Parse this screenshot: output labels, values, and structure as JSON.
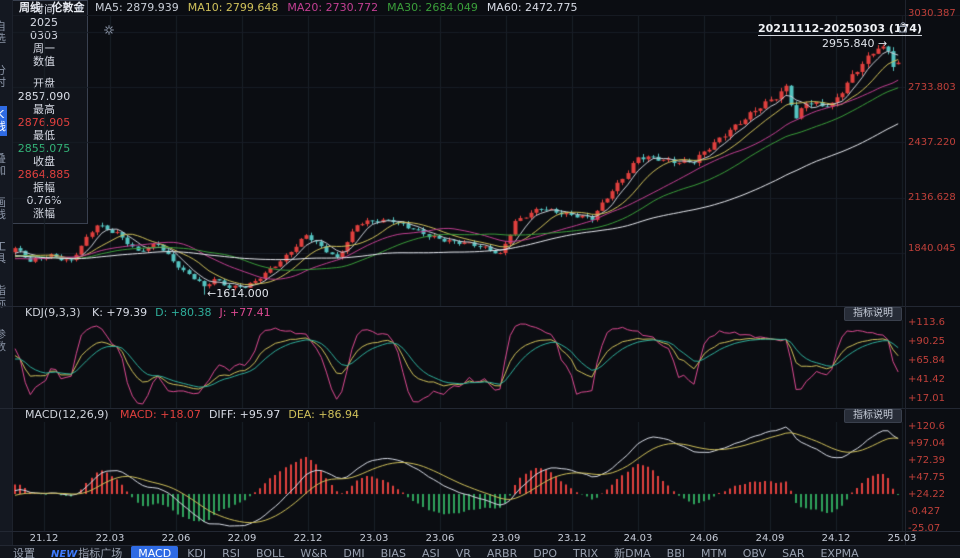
{
  "colors": {
    "background": "#0b0d12",
    "up": "#e0403e",
    "down": "#54c3c0",
    "axis_text": "#c0403a",
    "grid": "#1a2029",
    "text": "#d8dce6"
  },
  "topbar": {
    "period": "周线",
    "symbol": "伦敦金",
    "mas": [
      {
        "label": "MA5:",
        "value": "2879.939",
        "color": "#c8cdd6"
      },
      {
        "label": "MA10:",
        "value": "2799.648",
        "color": "#cfc05a"
      },
      {
        "label": "MA20:",
        "value": "2730.772",
        "color": "#c23f92"
      },
      {
        "label": "MA30:",
        "value": "2684.049",
        "color": "#3a9e3a"
      },
      {
        "label": "MA60:",
        "value": "2472.775",
        "color": "#d8dce6"
      }
    ]
  },
  "left_sidebar": {
    "items": [
      "自选",
      "分时",
      "K线",
      "叠加",
      "画线",
      "工具",
      "指标",
      "参数"
    ],
    "active_index": 2
  },
  "info_panel": {
    "title": "时间",
    "close_icon": "✕",
    "date_lines": [
      "2025",
      "0303",
      "周一"
    ],
    "section": "数值",
    "fields": [
      {
        "label": "开盘",
        "value": "2857.090",
        "color": "#d8dce6"
      },
      {
        "label": "最高",
        "value": "2876.905",
        "color": "#e0403e"
      },
      {
        "label": "最低",
        "value": "2855.075",
        "color": "#33b176"
      },
      {
        "label": "收盘",
        "value": "2864.885",
        "color": "#e0403e"
      },
      {
        "label": "振幅",
        "value": "0.76%",
        "color": "#d8dce6"
      },
      {
        "label": "涨幅",
        "value": "",
        "color": "#d8dce6"
      }
    ]
  },
  "main_chart": {
    "range_label": "20211112-20250303 (174)",
    "high_label": "2955.840",
    "high_arrow": "→",
    "low_label": "←1614.000"
  },
  "kdj": {
    "title": "KDJ(9,3,3)",
    "button": "指标说明",
    "items": [
      {
        "label": "K:",
        "value": "+79.39",
        "color": "#d8dce6"
      },
      {
        "label": "D:",
        "value": "+80.38",
        "color": "#2fae9b"
      },
      {
        "label": "J:",
        "value": "+77.41",
        "color": "#dd4a92"
      }
    ]
  },
  "macd": {
    "title": "MACD(12,26,9)",
    "button": "指标说明",
    "items": [
      {
        "label": "MACD:",
        "value": "+18.07",
        "color": "#e0403e"
      },
      {
        "label": "DIFF:",
        "value": "+95.97",
        "color": "#d8dce6"
      },
      {
        "label": "DEA:",
        "value": "+86.94",
        "color": "#cfc05a"
      }
    ]
  },
  "bottom_bar": {
    "items": [
      "设置",
      "NEW指标广场",
      "MACD",
      "KDJ",
      "RSI",
      "BOLL",
      "W&R",
      "DMI",
      "BIAS",
      "ASI",
      "VR",
      "ARBR",
      "DPO",
      "TRIX",
      "新DMA",
      "BBI",
      "MTM",
      "OBV",
      "SAR",
      "EXPMA"
    ],
    "active": "MACD"
  },
  "chart_data": [
    {
      "name": "main",
      "type": "candlestick",
      "title": "周线 伦敦金",
      "bars": 174,
      "range_label": "20211112-20250303 (174)",
      "x_ticks": [
        "21.12",
        "22.03",
        "22.06",
        "22.09",
        "22.12",
        "23.03",
        "23.06",
        "23.09",
        "23.12",
        "24.03",
        "24.06",
        "24.09",
        "24.12",
        "25.03"
      ],
      "y_ticks": [
        "3030.387",
        "2733.803",
        "2437.220",
        "2136.628",
        "1840.045"
      ],
      "ylim": [
        1564,
        3154
      ],
      "pre_keyframes": [
        [
          -60,
          1945
        ],
        [
          -47,
          1840
        ],
        [
          -34,
          1725
        ],
        [
          -24,
          1890
        ],
        [
          -14,
          1780
        ],
        [
          -6,
          1795
        ]
      ],
      "keyframes": [
        [
          0,
          1865
        ],
        [
          3,
          1790
        ],
        [
          7,
          1830
        ],
        [
          11,
          1795
        ],
        [
          16,
          1990
        ],
        [
          20,
          1950
        ],
        [
          24,
          1840
        ],
        [
          28,
          1890
        ],
        [
          33,
          1740
        ],
        [
          36,
          1680
        ],
        [
          37,
          1650
        ],
        [
          39,
          1700
        ],
        [
          42,
          1660
        ],
        [
          45,
          1655
        ],
        [
          47,
          1680
        ],
        [
          52,
          1800
        ],
        [
          57,
          1930
        ],
        [
          60,
          1870
        ],
        [
          63,
          1815
        ],
        [
          67,
          1990
        ],
        [
          71,
          2010
        ],
        [
          74,
          2020
        ],
        [
          81,
          1925
        ],
        [
          88,
          1895
        ],
        [
          95,
          1835
        ],
        [
          98,
          2010
        ],
        [
          103,
          2075
        ],
        [
          107,
          2060
        ],
        [
          113,
          2020
        ],
        [
          117,
          2180
        ],
        [
          122,
          2350
        ],
        [
          128,
          2340
        ],
        [
          133,
          2330
        ],
        [
          136,
          2400
        ],
        [
          140,
          2510
        ],
        [
          146,
          2620
        ],
        [
          149,
          2680
        ],
        [
          151,
          2740
        ],
        [
          153,
          2570
        ],
        [
          155,
          2650
        ],
        [
          158,
          2625
        ],
        [
          160,
          2640
        ],
        [
          164,
          2800
        ],
        [
          169,
          2940
        ],
        [
          171,
          2930
        ],
        [
          172,
          2858
        ],
        [
          173,
          2864.885
        ]
      ],
      "special": {
        "low_index": 37,
        "low": 1614.0,
        "high_index": 171,
        "high": 2955.84,
        "last_bar": {
          "open": 2857.09,
          "high": 2876.905,
          "low": 2855.075,
          "close": 2864.885
        }
      },
      "ma_periods": [
        5,
        10,
        20,
        30,
        60
      ],
      "ma_colors": [
        "#c8cdd6",
        "#cfc05a",
        "#c23f92",
        "#3a9e3a",
        "#e8eaf0"
      ]
    },
    {
      "name": "kdj",
      "type": "line",
      "params": [
        9,
        3,
        3
      ],
      "y_ticks": [
        "+113.6",
        "+90.25",
        "+65.84",
        "+41.42",
        "+17.01"
      ],
      "last": {
        "k": 79.39,
        "d": 80.38,
        "j": 77.41
      },
      "colors": {
        "k": "#cfc05a",
        "d": "#2fae9b",
        "j": "#dd4a92"
      }
    },
    {
      "name": "macd",
      "type": "macd",
      "params": [
        12,
        26,
        9
      ],
      "y_ticks": [
        "+120.6",
        "+97.04",
        "+72.39",
        "+47.75",
        "+24.22",
        "-0.427",
        "-25.07"
      ],
      "last": {
        "macd": 18.07,
        "diff": 95.97,
        "dea": 86.94
      },
      "colors": {
        "diff": "#d8dce6",
        "dea": "#cfc05a",
        "hist_pos": "#e0403e",
        "hist_neg": "#2fa35c"
      }
    }
  ]
}
